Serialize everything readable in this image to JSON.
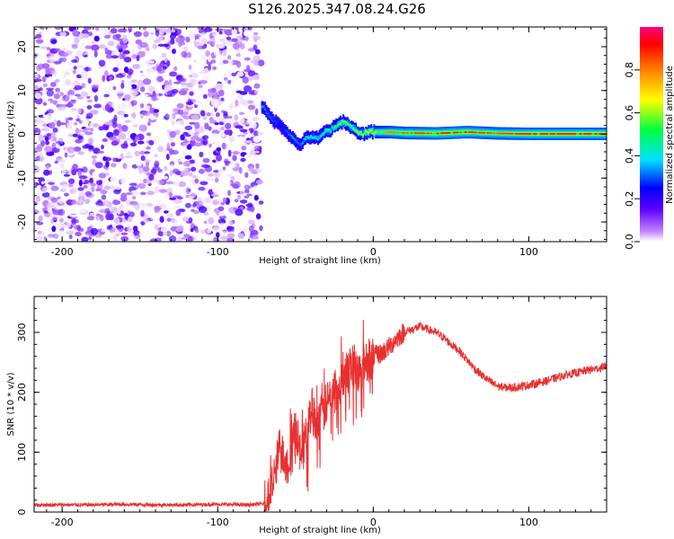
{
  "title": "S126.2025.347.08.24.G26",
  "chart_data": [
    {
      "type": "heatmap",
      "name": "spectrogram",
      "xlabel": "Height of straight line (km)",
      "ylabel": "Frequency (Hz)",
      "xlim": [
        -218,
        150
      ],
      "ylim": [
        -24.5,
        24.5
      ],
      "xticks": [
        -200,
        -100,
        0,
        100
      ],
      "yticks": [
        -20,
        -10,
        0,
        10,
        20
      ],
      "noise_region_x": [
        -218,
        -72
      ],
      "signal_track": {
        "x": [
          -72,
          -68,
          -64,
          -60,
          -56,
          -52,
          -48,
          -44,
          -40,
          -36,
          -32,
          -28,
          -24,
          -20,
          -16,
          -12,
          -8,
          -4,
          0,
          10,
          20,
          40,
          60,
          80,
          100,
          120,
          150
        ],
        "freq": [
          6.5,
          4.5,
          3.0,
          2.0,
          0.5,
          -1.0,
          -2.5,
          -1.0,
          -0.5,
          -1.0,
          0.5,
          1.0,
          2.0,
          3.0,
          2.0,
          1.0,
          0.0,
          0.5,
          0.5,
          0.5,
          0.3,
          0.2,
          0.5,
          0.2,
          0.1,
          0.1,
          0.1
        ],
        "amplitude": [
          0.35,
          0.3,
          0.3,
          0.25,
          0.3,
          0.35,
          0.3,
          0.4,
          0.45,
          0.4,
          0.45,
          0.5,
          0.55,
          0.6,
          0.55,
          0.6,
          0.6,
          0.65,
          0.7,
          0.8,
          0.85,
          0.9,
          0.9,
          0.85,
          0.9,
          0.9,
          0.9
        ]
      },
      "colorbar": {
        "label": "Normalized spectral amplitude",
        "range": [
          0,
          1
        ],
        "ticks": [
          "0.0",
          "0.2",
          "0.4",
          "0.6",
          "0.8"
        ]
      }
    },
    {
      "type": "line",
      "name": "snr",
      "xlabel": "Height of straight line (km)",
      "ylabel": "SNR (10 * v/v)",
      "xlim": [
        -218,
        150
      ],
      "ylim": [
        0,
        360
      ],
      "xticks": [
        -200,
        -100,
        0,
        100
      ],
      "yticks": [
        0,
        100,
        200,
        300
      ],
      "color": "#e83030",
      "x": [
        -218,
        -200,
        -180,
        -160,
        -140,
        -120,
        -100,
        -80,
        -70,
        -65,
        -60,
        -55,
        -50,
        -45,
        -40,
        -35,
        -30,
        -25,
        -20,
        -15,
        -10,
        -5,
        0,
        5,
        10,
        15,
        20,
        25,
        30,
        35,
        40,
        45,
        50,
        55,
        60,
        65,
        70,
        75,
        80,
        85,
        90,
        95,
        100,
        105,
        110,
        115,
        120,
        125,
        130,
        135,
        140,
        145,
        150
      ],
      "y": [
        12,
        12,
        12,
        13,
        12,
        12,
        13,
        12,
        14,
        40,
        110,
        80,
        140,
        100,
        170,
        150,
        180,
        200,
        220,
        240,
        230,
        250,
        260,
        265,
        275,
        290,
        300,
        305,
        310,
        305,
        300,
        292,
        280,
        270,
        255,
        240,
        228,
        218,
        210,
        208,
        208,
        210,
        212,
        215,
        218,
        222,
        226,
        230,
        232,
        235,
        238,
        240,
        245
      ]
    }
  ]
}
